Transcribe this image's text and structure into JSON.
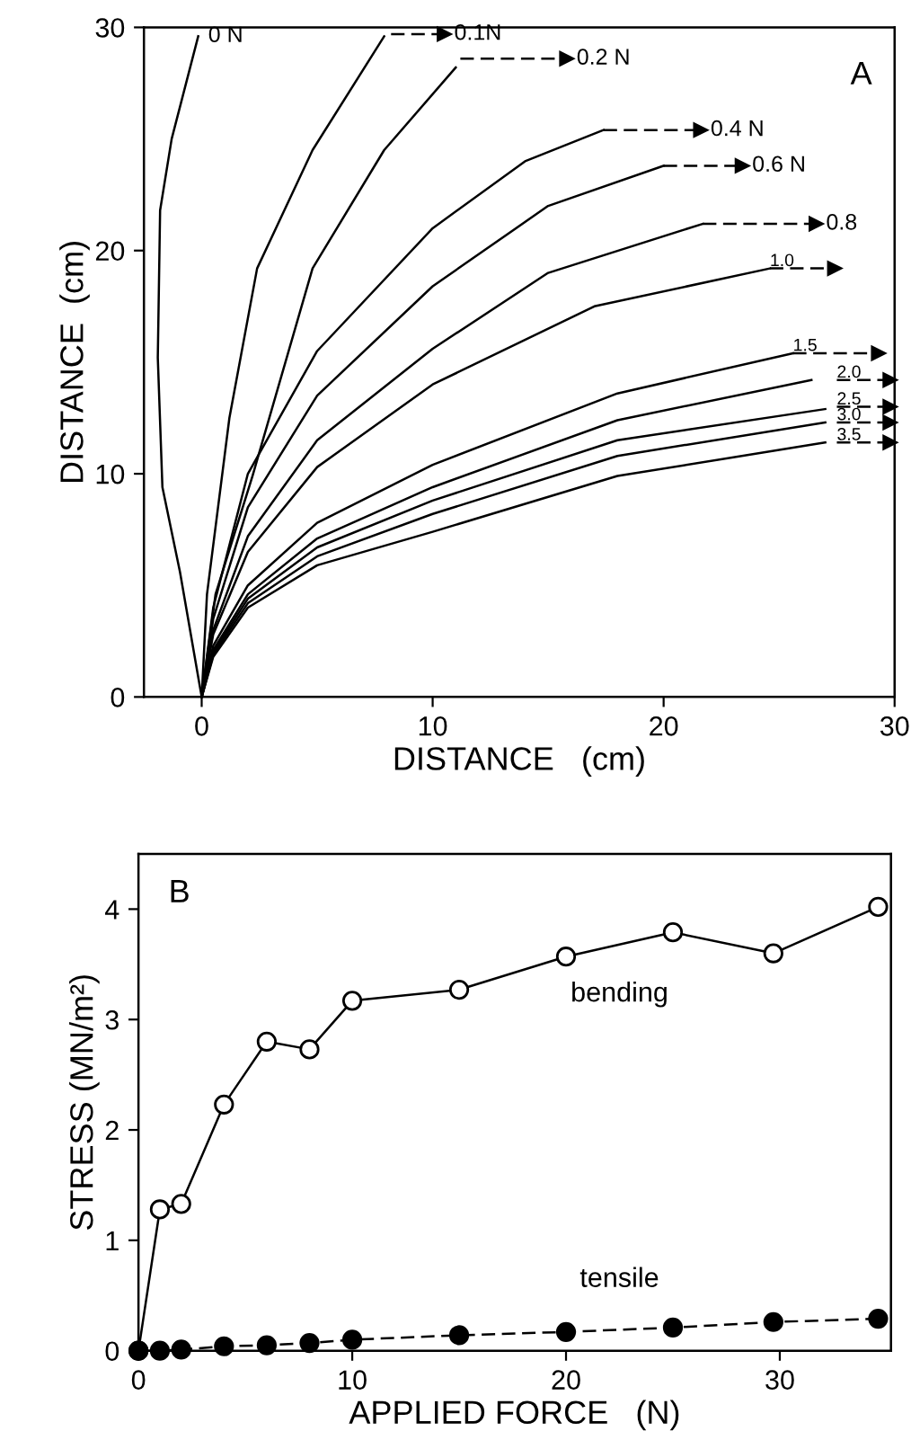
{
  "chart_data": [
    {
      "type": "line",
      "xlabel": "DISTANCE   (cm)",
      "ylabel": "DISTANCE  (cm)",
      "xlim": [
        -2.5,
        30
      ],
      "ylim": [
        0,
        30
      ],
      "xticks": [
        0,
        10,
        20,
        30
      ],
      "yticks": [
        0,
        10,
        20,
        30
      ],
      "marker": "none",
      "line_style": "solid",
      "series": [
        {
          "name": "0 N",
          "color": "#000000",
          "x": [
            0,
            -0.94,
            -1.7,
            -1.9,
            -1.8,
            -1.3,
            -0.15
          ],
          "values": [
            0,
            5.6,
            9.4,
            15.2,
            21.8,
            25,
            29.6
          ]
        },
        {
          "color": "#000000",
          "x": [
            0,
            0.23,
            1.2,
            2.4,
            4.8,
            7.9
          ],
          "values": [
            0,
            4.6,
            12.5,
            19.2,
            24.5,
            29.6
          ]
        },
        {
          "color": "#000000",
          "x": [
            0,
            0.6,
            2.2,
            4.8,
            7.9,
            11
          ],
          "values": [
            0,
            4.6,
            9.9,
            19.2,
            24.5,
            28.2
          ]
        },
        {
          "color": "#000000",
          "x": [
            0,
            0.5,
            2,
            5,
            10,
            14,
            17.4
          ],
          "values": [
            0,
            4,
            10,
            15.5,
            21,
            24,
            25.4
          ]
        },
        {
          "color": "#000000",
          "x": [
            0,
            0.5,
            2,
            5,
            10,
            15,
            20
          ],
          "values": [
            0,
            3.5,
            8.5,
            13.5,
            18.4,
            22,
            23.8
          ]
        },
        {
          "color": "#000000",
          "x": [
            0,
            0.5,
            2,
            5,
            10,
            15,
            21.7
          ],
          "values": [
            0,
            3,
            7.2,
            11.5,
            15.6,
            19,
            21.2
          ]
        },
        {
          "color": "#000000",
          "x": [
            0,
            0.5,
            2,
            5,
            10,
            17,
            24.6
          ],
          "values": [
            0,
            2.8,
            6.5,
            10.3,
            14,
            17.5,
            19.2
          ]
        },
        {
          "color": "#000000",
          "x": [
            0,
            0.5,
            2,
            5,
            10,
            18,
            25.6
          ],
          "values": [
            0,
            2.3,
            5,
            7.8,
            10.4,
            13.6,
            15.4
          ]
        },
        {
          "color": "#000000",
          "x": [
            0,
            0.5,
            2,
            5,
            10,
            18,
            26.4
          ],
          "values": [
            0,
            2.1,
            4.6,
            7.1,
            9.4,
            12.4,
            14.2
          ]
        },
        {
          "color": "#000000",
          "x": [
            0,
            0.5,
            2,
            5,
            10,
            18,
            27
          ],
          "values": [
            0,
            2,
            4.4,
            6.7,
            8.8,
            11.5,
            12.9
          ]
        },
        {
          "color": "#000000",
          "x": [
            0,
            0.5,
            2,
            5,
            10,
            18,
            27
          ],
          "values": [
            0,
            1.9,
            4.2,
            6.3,
            8.2,
            10.8,
            12.3
          ]
        },
        {
          "color": "#000000",
          "x": [
            0,
            0.5,
            2,
            5,
            10,
            18,
            27
          ],
          "values": [
            0,
            1.8,
            4,
            5.9,
            7.4,
            9.9,
            11.4
          ]
        },
        {
          "name": "0.1N",
          "color": "#000000",
          "line_style": "dashed",
          "marker": "triangle",
          "x": [
            8.2,
            10.5
          ],
          "values": [
            29.7,
            29.7
          ]
        },
        {
          "name": "0.2 N",
          "color": "#000000",
          "line_style": "dashed",
          "marker": "triangle",
          "x": [
            11.2,
            15.8
          ],
          "values": [
            28.6,
            28.6
          ]
        },
        {
          "name": "0.4 N",
          "color": "#000000",
          "line_style": "dashed",
          "marker": "triangle",
          "x": [
            17.4,
            21.6
          ],
          "values": [
            25.4,
            25.4
          ]
        },
        {
          "name": "0.6 N",
          "color": "#000000",
          "line_style": "dashed",
          "marker": "triangle",
          "x": [
            20,
            23.4
          ],
          "values": [
            23.8,
            23.8
          ]
        },
        {
          "name": "0.8",
          "color": "#000000",
          "line_style": "dashed",
          "marker": "triangle",
          "x": [
            21.7,
            26.6
          ],
          "values": [
            21.2,
            21.2
          ]
        },
        {
          "name": "1.0",
          "color": "#000000",
          "line_style": "dashed",
          "marker": "triangle",
          "x": [
            24.6,
            27.4
          ],
          "values": [
            19.2,
            19.2
          ]
        },
        {
          "name": "1.5",
          "color": "#000000",
          "line_style": "dashed",
          "marker": "triangle",
          "x": [
            25.6,
            29.3
          ],
          "values": [
            15.4,
            15.4
          ]
        },
        {
          "name": "2.0",
          "color": "#000000",
          "line_style": "dashed",
          "marker": "triangle",
          "x": [
            27.5,
            29.8
          ],
          "values": [
            14.2,
            14.2
          ]
        },
        {
          "name": "2.5",
          "color": "#000000",
          "line_style": "dashed",
          "marker": "triangle",
          "x": [
            27.5,
            29.8
          ],
          "values": [
            13,
            13
          ]
        },
        {
          "name": "3.0",
          "color": "#000000",
          "line_style": "dashed",
          "marker": "triangle",
          "x": [
            27.5,
            29.8
          ],
          "values": [
            12.3,
            12.3
          ]
        },
        {
          "name": "3.5",
          "color": "#000000",
          "line_style": "dashed",
          "marker": "triangle",
          "x": [
            27.5,
            29.8
          ],
          "values": [
            11.4,
            11.4
          ]
        }
      ],
      "annotations": [
        "A"
      ]
    },
    {
      "type": "line",
      "xlabel": "APPLIED FORCE   (N)",
      "ylabel": "STRESS (MN/m²)",
      "xlim": [
        0,
        35.2
      ],
      "ylim": [
        0,
        4.5
      ],
      "xticks": [
        0,
        10,
        20,
        30
      ],
      "yticks": [
        0,
        1,
        2,
        3,
        4
      ],
      "marker": "circle",
      "series": [
        {
          "name": "bending",
          "color": "#000000",
          "line_style": "solid",
          "x": [
            0,
            1,
            2,
            4,
            6,
            8,
            10,
            15,
            20,
            25,
            29.7,
            34.6
          ],
          "values": [
            0,
            1.28,
            1.33,
            2.23,
            2.8,
            2.73,
            3.17,
            3.27,
            3.57,
            3.79,
            3.6,
            4.02
          ]
        },
        {
          "name": "tensile",
          "color": "#000000",
          "line_style": "dashed",
          "x": [
            0,
            1,
            2,
            4,
            6,
            8,
            10,
            15,
            20,
            25,
            29.7,
            34.6
          ],
          "values": [
            0,
            0,
            0.01,
            0.04,
            0.05,
            0.07,
            0.1,
            0.14,
            0.17,
            0.21,
            0.26,
            0.29
          ]
        }
      ],
      "annotations": [
        "B"
      ]
    }
  ]
}
